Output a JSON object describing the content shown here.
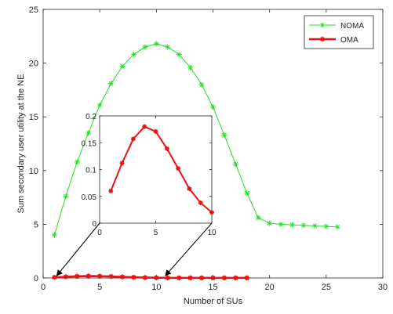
{
  "chart_data": [
    {
      "type": "line",
      "xlabel": "Number of SUs",
      "ylabel": "Sum secondary user utility at the NE",
      "xlim": [
        0,
        30
      ],
      "ylim": [
        0,
        25
      ],
      "xticks": [
        0,
        5,
        10,
        15,
        20,
        25,
        30
      ],
      "yticks": [
        0,
        5,
        10,
        15,
        20,
        25
      ],
      "grid": false,
      "legend_position": "top-right",
      "series": [
        {
          "name": "NOMA",
          "color": "#22e022",
          "marker": "asterisk",
          "x": [
            1,
            2,
            3,
            4,
            5,
            6,
            7,
            8,
            9,
            10,
            11,
            12,
            13,
            14,
            15,
            16,
            17,
            18,
            19,
            20,
            21,
            22,
            23,
            24,
            25,
            26
          ],
          "y": [
            4.0,
            7.6,
            10.8,
            13.5,
            16.1,
            18.1,
            19.7,
            20.8,
            21.5,
            21.8,
            21.5,
            20.8,
            19.6,
            18.0,
            15.9,
            13.3,
            10.6,
            7.9,
            5.6,
            5.1,
            5.0,
            4.95,
            4.9,
            4.85,
            4.8,
            4.75
          ]
        },
        {
          "name": "OMA",
          "color": "#ee1111",
          "marker": "asterisk",
          "x": [
            1,
            2,
            3,
            4,
            5,
            6,
            7,
            8,
            9,
            10,
            11,
            12,
            13,
            14,
            15,
            16,
            17,
            18
          ],
          "y": [
            0.06,
            0.11,
            0.16,
            0.18,
            0.17,
            0.14,
            0.1,
            0.065,
            0.04,
            0.02,
            0.01,
            0.01,
            0.01,
            0.01,
            0.01,
            0.01,
            0.01,
            0.01
          ]
        }
      ]
    },
    {
      "type": "line",
      "xlim": [
        0,
        10
      ],
      "ylim": [
        0,
        0.2
      ],
      "xticks": [
        0,
        5,
        10
      ],
      "yticks": [
        0,
        0.05,
        0.1,
        0.15,
        0.2
      ],
      "ytick_labels": [
        "0",
        "0.05",
        "0.1",
        "0.15",
        "0.2"
      ],
      "grid": false,
      "series": [
        {
          "color": "#ee1111",
          "marker": "asterisk",
          "x": [
            1,
            2,
            3,
            4,
            5,
            6,
            7,
            8,
            9,
            10
          ],
          "y": [
            0.06,
            0.112,
            0.157,
            0.18,
            0.171,
            0.139,
            0.102,
            0.064,
            0.038,
            0.02
          ]
        }
      ]
    }
  ]
}
